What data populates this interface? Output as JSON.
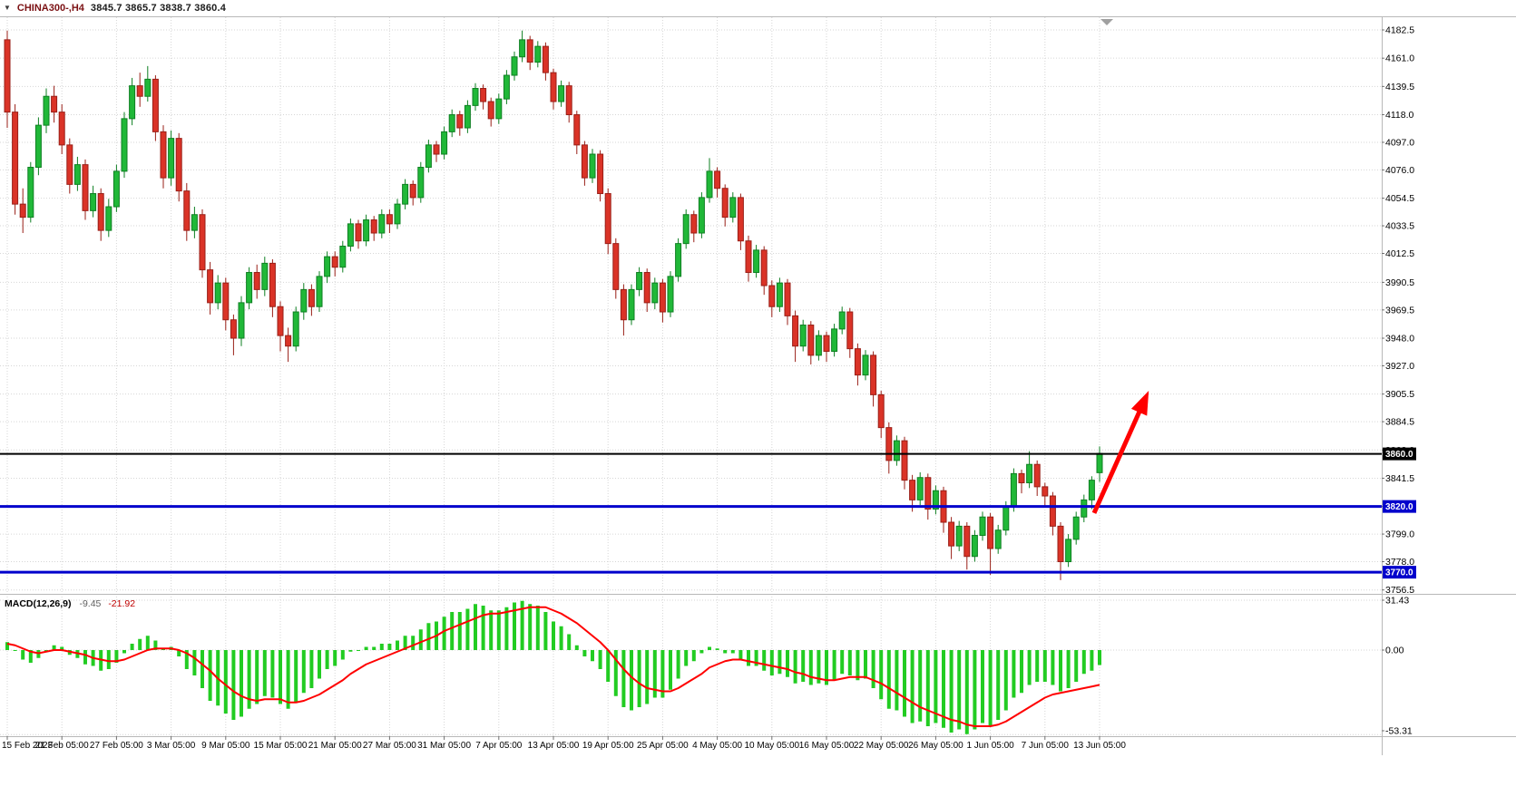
{
  "quote_bar": {
    "dropdown_icon": "▼",
    "symbol": "CHINA300-,H4",
    "ohlc": "3845.7 3865.7 3838.7 3860.4"
  },
  "chart_data": {
    "type": "candlestick",
    "title": "CHINA300-,H4",
    "x_labels": [
      "15 Feb 2023",
      "21 Feb 05:00",
      "27 Feb 05:00",
      "3 Mar 05:00",
      "9 Mar 05:00",
      "15 Mar 05:00",
      "21 Mar 05:00",
      "27 Mar 05:00",
      "31 Mar 05:00",
      "7 Apr 05:00",
      "13 Apr 05:00",
      "19 Apr 05:00",
      "25 Apr 05:00",
      "4 May 05:00",
      "10 May 05:00",
      "16 May 05:00",
      "22 May 05:00",
      "26 May 05:00",
      "1 Jun 05:00",
      "7 Jun 05:00",
      "13 Jun 05:00"
    ],
    "x_label_indices": [
      0,
      7,
      14,
      21,
      28,
      35,
      42,
      49,
      56,
      63,
      70,
      77,
      84,
      91,
      98,
      105,
      112,
      119,
      126,
      133,
      140
    ],
    "price_axis": {
      "ticks": [
        "4182.5",
        "4161.0",
        "4139.5",
        "4118.0",
        "4097.0",
        "4076.0",
        "4054.5",
        "4033.5",
        "4012.5",
        "3990.5",
        "3969.5",
        "3948.0",
        "3927.0",
        "3905.5",
        "3884.5",
        "3863.0",
        "3841.5",
        "3820.0",
        "3799.0",
        "3778.0",
        "3756.5"
      ],
      "min": 3753,
      "max": 4192,
      "grid": true
    },
    "candles": [
      [
        4175,
        4182,
        4108,
        4120
      ],
      [
        4120,
        4126,
        4042,
        4050
      ],
      [
        4050,
        4062,
        4028,
        4040
      ],
      [
        4040,
        4082,
        4036,
        4078
      ],
      [
        4078,
        4116,
        4072,
        4110
      ],
      [
        4110,
        4138,
        4104,
        4132
      ],
      [
        4132,
        4140,
        4112,
        4120
      ],
      [
        4120,
        4126,
        4088,
        4095
      ],
      [
        4095,
        4100,
        4058,
        4065
      ],
      [
        4065,
        4086,
        4060,
        4080
      ],
      [
        4080,
        4084,
        4038,
        4045
      ],
      [
        4045,
        4064,
        4040,
        4058
      ],
      [
        4058,
        4062,
        4022,
        4030
      ],
      [
        4030,
        4054,
        4025,
        4048
      ],
      [
        4048,
        4080,
        4044,
        4075
      ],
      [
        4075,
        4120,
        4070,
        4115
      ],
      [
        4115,
        4146,
        4110,
        4140
      ],
      [
        4140,
        4150,
        4124,
        4132
      ],
      [
        4132,
        4155,
        4128,
        4145
      ],
      [
        4145,
        4148,
        4098,
        4105
      ],
      [
        4105,
        4110,
        4062,
        4070
      ],
      [
        4070,
        4106,
        4064,
        4100
      ],
      [
        4100,
        4104,
        4052,
        4060
      ],
      [
        4060,
        4066,
        4022,
        4030
      ],
      [
        4030,
        4048,
        4024,
        4042
      ],
      [
        4042,
        4046,
        3994,
        4000
      ],
      [
        4000,
        4006,
        3966,
        3975
      ],
      [
        3975,
        3996,
        3970,
        3990
      ],
      [
        3990,
        3994,
        3954,
        3962
      ],
      [
        3962,
        3966,
        3935,
        3948
      ],
      [
        3948,
        3980,
        3942,
        3975
      ],
      [
        3975,
        4002,
        3970,
        3998
      ],
      [
        3998,
        4004,
        3978,
        3985
      ],
      [
        3985,
        4010,
        3980,
        4005
      ],
      [
        4005,
        4008,
        3964,
        3972
      ],
      [
        3972,
        3976,
        3938,
        3950
      ],
      [
        3950,
        3956,
        3930,
        3942
      ],
      [
        3942,
        3972,
        3938,
        3968
      ],
      [
        3968,
        3990,
        3962,
        3985
      ],
      [
        3985,
        3989,
        3965,
        3972
      ],
      [
        3972,
        3999,
        3968,
        3995
      ],
      [
        3995,
        4014,
        3990,
        4010
      ],
      [
        4010,
        4014,
        3995,
        4002
      ],
      [
        4002,
        4022,
        3998,
        4018
      ],
      [
        4018,
        4039,
        4014,
        4035
      ],
      [
        4035,
        4038,
        4016,
        4022
      ],
      [
        4022,
        4042,
        4018,
        4038
      ],
      [
        4038,
        4041,
        4022,
        4028
      ],
      [
        4028,
        4046,
        4024,
        4042
      ],
      [
        4042,
        4046,
        4028,
        4035
      ],
      [
        4035,
        4054,
        4031,
        4050
      ],
      [
        4050,
        4069,
        4046,
        4065
      ],
      [
        4065,
        4068,
        4049,
        4055
      ],
      [
        4055,
        4082,
        4051,
        4078
      ],
      [
        4078,
        4099,
        4074,
        4095
      ],
      [
        4095,
        4098,
        4082,
        4088
      ],
      [
        4088,
        4109,
        4084,
        4105
      ],
      [
        4105,
        4122,
        4101,
        4118
      ],
      [
        4118,
        4121,
        4102,
        4108
      ],
      [
        4108,
        4129,
        4104,
        4125
      ],
      [
        4125,
        4142,
        4121,
        4138
      ],
      [
        4138,
        4141,
        4122,
        4128
      ],
      [
        4128,
        4131,
        4109,
        4115
      ],
      [
        4115,
        4134,
        4111,
        4130
      ],
      [
        4130,
        4152,
        4126,
        4148
      ],
      [
        4148,
        4166,
        4144,
        4162
      ],
      [
        4162,
        4182,
        4158,
        4175
      ],
      [
        4175,
        4178,
        4152,
        4158
      ],
      [
        4158,
        4174,
        4154,
        4170
      ],
      [
        4170,
        4173,
        4144,
        4150
      ],
      [
        4150,
        4153,
        4122,
        4128
      ],
      [
        4128,
        4144,
        4124,
        4140
      ],
      [
        4140,
        4143,
        4112,
        4118
      ],
      [
        4118,
        4121,
        4088,
        4095
      ],
      [
        4095,
        4098,
        4064,
        4070
      ],
      [
        4070,
        4092,
        4066,
        4088
      ],
      [
        4088,
        4091,
        4052,
        4058
      ],
      [
        4058,
        4062,
        4012,
        4020
      ],
      [
        4020,
        4024,
        3978,
        3985
      ],
      [
        3985,
        3989,
        3950,
        3962
      ],
      [
        3962,
        3989,
        3958,
        3985
      ],
      [
        3985,
        4002,
        3980,
        3998
      ],
      [
        3998,
        4001,
        3968,
        3975
      ],
      [
        3975,
        3994,
        3970,
        3990
      ],
      [
        3990,
        3993,
        3960,
        3968
      ],
      [
        3968,
        3999,
        3964,
        3995
      ],
      [
        3995,
        4024,
        3991,
        4020
      ],
      [
        4020,
        4046,
        4016,
        4042
      ],
      [
        4042,
        4045,
        4021,
        4028
      ],
      [
        4028,
        4059,
        4024,
        4055
      ],
      [
        4055,
        4085,
        4051,
        4075
      ],
      [
        4075,
        4078,
        4055,
        4062
      ],
      [
        4062,
        4065,
        4033,
        4040
      ],
      [
        4040,
        4059,
        4036,
        4055
      ],
      [
        4055,
        4058,
        4015,
        4022
      ],
      [
        4022,
        4026,
        3991,
        3998
      ],
      [
        3998,
        4019,
        3994,
        4015
      ],
      [
        4015,
        4018,
        3981,
        3988
      ],
      [
        3988,
        3992,
        3964,
        3972
      ],
      [
        3972,
        3994,
        3968,
        3990
      ],
      [
        3990,
        3993,
        3958,
        3965
      ],
      [
        3965,
        3969,
        3930,
        3942
      ],
      [
        3942,
        3962,
        3938,
        3958
      ],
      [
        3958,
        3961,
        3928,
        3935
      ],
      [
        3935,
        3954,
        3931,
        3950
      ],
      [
        3950,
        3953,
        3930,
        3938
      ],
      [
        3938,
        3959,
        3934,
        3955
      ],
      [
        3955,
        3972,
        3951,
        3968
      ],
      [
        3968,
        3971,
        3933,
        3940
      ],
      [
        3940,
        3944,
        3912,
        3920
      ],
      [
        3920,
        3939,
        3916,
        3935
      ],
      [
        3935,
        3938,
        3896,
        3905
      ],
      [
        3905,
        3908,
        3872,
        3880
      ],
      [
        3880,
        3884,
        3845,
        3855
      ],
      [
        3855,
        3874,
        3851,
        3870
      ],
      [
        3870,
        3873,
        3833,
        3840
      ],
      [
        3840,
        3844,
        3816,
        3825
      ],
      [
        3825,
        3846,
        3821,
        3842
      ],
      [
        3842,
        3845,
        3810,
        3818
      ],
      [
        3818,
        3836,
        3814,
        3832
      ],
      [
        3832,
        3835,
        3800,
        3808
      ],
      [
        3808,
        3812,
        3780,
        3790
      ],
      [
        3790,
        3809,
        3786,
        3805
      ],
      [
        3805,
        3808,
        3772,
        3782
      ],
      [
        3782,
        3802,
        3778,
        3798
      ],
      [
        3798,
        3816,
        3794,
        3812
      ],
      [
        3812,
        3815,
        3768,
        3788
      ],
      [
        3788,
        3806,
        3784,
        3802
      ],
      [
        3802,
        3824,
        3798,
        3820
      ],
      [
        3820,
        3849,
        3816,
        3845
      ],
      [
        3845,
        3848,
        3830,
        3838
      ],
      [
        3838,
        3862,
        3834,
        3852
      ],
      [
        3852,
        3855,
        3828,
        3835
      ],
      [
        3835,
        3838,
        3820,
        3828
      ],
      [
        3828,
        3831,
        3798,
        3805
      ],
      [
        3805,
        3808,
        3764,
        3778
      ],
      [
        3778,
        3799,
        3774,
        3795
      ],
      [
        3795,
        3816,
        3791,
        3812
      ],
      [
        3812,
        3829,
        3808,
        3825
      ],
      [
        3825,
        3843,
        3818,
        3840
      ],
      [
        3845.7,
        3865.7,
        3838.7,
        3860.4
      ]
    ],
    "hlines": [
      {
        "price": 3860.0,
        "label": "3860.0",
        "color": "#000000",
        "width": 2
      },
      {
        "price": 3820.0,
        "label": "3820.0",
        "color": "#0000cc",
        "width": 3
      },
      {
        "price": 3770.0,
        "label": "3770.0",
        "color": "#0000cc",
        "width": 3
      }
    ],
    "arrow": {
      "from_index": 139.3,
      "from_price": 3815,
      "to_index": 146.3,
      "to_price": 3908,
      "color": "#ff0000"
    },
    "macd": {
      "label": "MACD(12,26,9)",
      "macd_value": "-9.45",
      "signal_value": "-21.92",
      "axis_ticks": [
        "31.43",
        "0.00",
        "-53.31"
      ],
      "histogram": [
        5,
        0,
        -6,
        -8,
        -5,
        0,
        3,
        2,
        -3,
        -5,
        -9,
        -10,
        -13,
        -12,
        -8,
        -2,
        4,
        7,
        9,
        6,
        1,
        2,
        -4,
        -12,
        -16,
        -24,
        -32,
        -35,
        -40,
        -44,
        -42,
        -37,
        -34,
        -29,
        -30,
        -34,
        -37,
        -33,
        -27,
        -24,
        -18,
        -12,
        -10,
        -6,
        -1,
        0,
        2,
        2,
        4,
        4,
        6,
        9,
        9,
        13,
        17,
        18,
        21,
        24,
        24,
        26,
        29,
        28,
        25,
        25,
        27,
        30,
        31,
        29,
        28,
        24,
        18,
        15,
        10,
        3,
        -4,
        -7,
        -12,
        -20,
        -29,
        -36,
        -38,
        -36,
        -34,
        -30,
        -30,
        -25,
        -18,
        -10,
        -7,
        -2,
        2,
        1,
        -2,
        -2,
        -6,
        -10,
        -10,
        -13,
        -16,
        -15,
        -17,
        -21,
        -20,
        -22,
        -21,
        -22,
        -19,
        -15,
        -16,
        -19,
        -18,
        -24,
        -31,
        -37,
        -38,
        -42,
        -46,
        -45,
        -48,
        -46,
        -49,
        -52,
        -50,
        -53,
        -50,
        -46,
        -48,
        -44,
        -38,
        -30,
        -27,
        -22,
        -20,
        -20,
        -22,
        -26,
        -24,
        -20,
        -15,
        -13,
        -9.45
      ],
      "signal": [
        4,
        3,
        1,
        -1,
        -2,
        -1,
        0,
        0,
        -1,
        -2,
        -3,
        -5,
        -6,
        -7,
        -7,
        -6,
        -4,
        -2,
        0,
        1,
        1,
        1,
        0,
        -2,
        -5,
        -9,
        -13,
        -18,
        -22,
        -26,
        -29,
        -31,
        -32,
        -31,
        -31,
        -31,
        -33,
        -33,
        -32,
        -30,
        -28,
        -25,
        -22,
        -19,
        -15,
        -12,
        -9,
        -7,
        -5,
        -3,
        -1,
        1,
        3,
        5,
        7,
        9,
        12,
        14,
        16,
        18,
        20,
        22,
        23,
        23,
        24,
        25,
        26,
        27,
        27,
        27,
        25,
        23,
        20,
        17,
        13,
        9,
        5,
        0,
        -6,
        -12,
        -17,
        -21,
        -24,
        -25,
        -26,
        -26,
        -24,
        -21,
        -18,
        -15,
        -11,
        -9,
        -7,
        -6,
        -6,
        -7,
        -8,
        -9,
        -10,
        -11,
        -12,
        -14,
        -15,
        -17,
        -18,
        -19,
        -19,
        -18,
        -17,
        -17,
        -17,
        -19,
        -21,
        -24,
        -27,
        -30,
        -33,
        -36,
        -38,
        -40,
        -42,
        -44,
        -45,
        -47,
        -48,
        -48,
        -48,
        -47,
        -45,
        -42,
        -39,
        -36,
        -33,
        -30,
        -28,
        -27,
        -26,
        -25,
        -24,
        -23,
        -21.92
      ]
    },
    "colors": {
      "up_body": "#20b838",
      "up_edge": "#0e7f22",
      "down_body": "#da3327",
      "down_edge": "#991f17",
      "hist": "#22cc22",
      "signal": "#ff0000",
      "grid": "#d6d6d6",
      "frame": "#b8b8b8",
      "axis_text": "#000000",
      "badge_text": "#ffffff",
      "arrow": "#ff0000",
      "background": "#ffffff"
    }
  }
}
